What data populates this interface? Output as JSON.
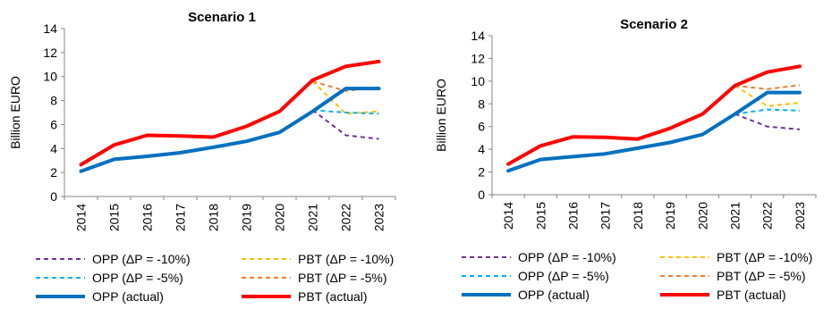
{
  "chart_data": [
    {
      "type": "line",
      "title": "Scenario 1",
      "ylabel": "Billion EURO",
      "xlabel": "",
      "ylim": [
        0,
        14
      ],
      "yticks": [
        0,
        2,
        4,
        6,
        8,
        10,
        12,
        14
      ],
      "x": [
        "2014",
        "2015",
        "2016",
        "2017",
        "2018",
        "2019",
        "2020",
        "2021",
        "2022",
        "2023"
      ],
      "legend_position": "bottom",
      "series": [
        {
          "name": "OPP (ΔP = -10%)",
          "color": "#7030A0",
          "style": "dashed",
          "x": [
            "2021",
            "2022",
            "2023"
          ],
          "values": [
            7.2,
            5.1,
            4.8
          ]
        },
        {
          "name": "PBT (ΔP = -10%)",
          "color": "#FFC000",
          "style": "dashed",
          "x": [
            "2021",
            "2022",
            "2023"
          ],
          "values": [
            9.6,
            6.9,
            7.1
          ]
        },
        {
          "name": "OPP (ΔP = -5%)",
          "color": "#00B0F0",
          "style": "dashed",
          "x": [
            "2021",
            "2022",
            "2023"
          ],
          "values": [
            7.2,
            7.0,
            6.9
          ]
        },
        {
          "name": "PBT (ΔP = -5%)",
          "color": "#ED7D31",
          "style": "dashed",
          "x": [
            "2021",
            "2022",
            "2023"
          ],
          "values": [
            9.6,
            8.8,
            9.1
          ]
        },
        {
          "name": "OPP (actual)",
          "color": "#0070C0",
          "style": "solid",
          "x": [
            "2014",
            "2015",
            "2016",
            "2017",
            "2018",
            "2019",
            "2020",
            "2021",
            "2022",
            "2023"
          ],
          "values": [
            2.1,
            3.1,
            3.35,
            3.65,
            4.1,
            4.6,
            5.35,
            7.1,
            9.0,
            9.0
          ]
        },
        {
          "name": "PBT (actual)",
          "color": "#FF0000",
          "style": "solid",
          "x": [
            "2014",
            "2015",
            "2016",
            "2017",
            "2018",
            "2019",
            "2020",
            "2021",
            "2022",
            "2023"
          ],
          "values": [
            2.65,
            4.3,
            5.1,
            5.05,
            4.95,
            5.85,
            7.1,
            9.7,
            10.85,
            11.25
          ]
        }
      ]
    },
    {
      "type": "line",
      "title": "Scenario 2",
      "ylabel": "Billion EURO",
      "xlabel": "",
      "ylim": [
        0,
        14
      ],
      "yticks": [
        0,
        2,
        4,
        6,
        8,
        10,
        12,
        14
      ],
      "x": [
        "2014",
        "2015",
        "2016",
        "2017",
        "2018",
        "2019",
        "2020",
        "2021",
        "2022",
        "2023"
      ],
      "legend_position": "bottom",
      "series": [
        {
          "name": "OPP (ΔP = -10%)",
          "color": "#7030A0",
          "style": "dashed",
          "x": [
            "2021",
            "2022",
            "2023"
          ],
          "values": [
            7.1,
            6.0,
            5.75
          ]
        },
        {
          "name": "PBT (ΔP = -10%)",
          "color": "#FFC000",
          "style": "dashed",
          "x": [
            "2021",
            "2022",
            "2023"
          ],
          "values": [
            9.6,
            7.8,
            8.1
          ]
        },
        {
          "name": "OPP (ΔP = -5%)",
          "color": "#00B0F0",
          "style": "dashed",
          "x": [
            "2021",
            "2022",
            "2023"
          ],
          "values": [
            7.1,
            7.5,
            7.4
          ]
        },
        {
          "name": "PBT (ΔP = -5%)",
          "color": "#ED7D31",
          "style": "dashed",
          "x": [
            "2021",
            "2022",
            "2023"
          ],
          "values": [
            9.6,
            9.3,
            9.65
          ]
        },
        {
          "name": "OPP (actual)",
          "color": "#0070C0",
          "style": "solid",
          "x": [
            "2014",
            "2015",
            "2016",
            "2017",
            "2018",
            "2019",
            "2020",
            "2021",
            "2022",
            "2023"
          ],
          "values": [
            2.1,
            3.1,
            3.35,
            3.6,
            4.1,
            4.6,
            5.3,
            7.1,
            9.0,
            9.0
          ]
        },
        {
          "name": "PBT (actual)",
          "color": "#FF0000",
          "style": "solid",
          "x": [
            "2014",
            "2015",
            "2016",
            "2017",
            "2018",
            "2019",
            "2020",
            "2021",
            "2022",
            "2023"
          ],
          "values": [
            2.7,
            4.3,
            5.1,
            5.05,
            4.9,
            5.85,
            7.1,
            9.6,
            10.8,
            11.3
          ]
        }
      ]
    }
  ]
}
